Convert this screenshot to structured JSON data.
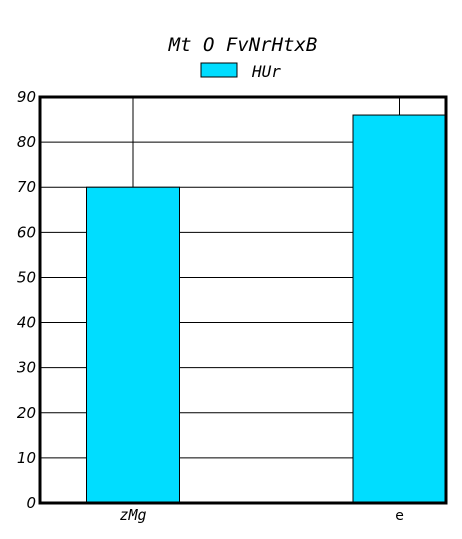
{
  "chart_data": {
    "type": "bar",
    "title": "Mt O FvNrHtxB",
    "categories": [
      "zMg",
      "e"
    ],
    "series": [
      {
        "name": "HUr",
        "values": [
          70,
          86
        ]
      }
    ],
    "ylim": [
      0,
      90
    ],
    "yticks": [
      0,
      10,
      20,
      30,
      40,
      50,
      60,
      70,
      80,
      90
    ],
    "xlabel": "",
    "ylabel": "",
    "grid": true,
    "legend": "top-center",
    "colors": {
      "bar": "#00DDFF",
      "axis": "#000000",
      "grid": "#000000"
    }
  }
}
